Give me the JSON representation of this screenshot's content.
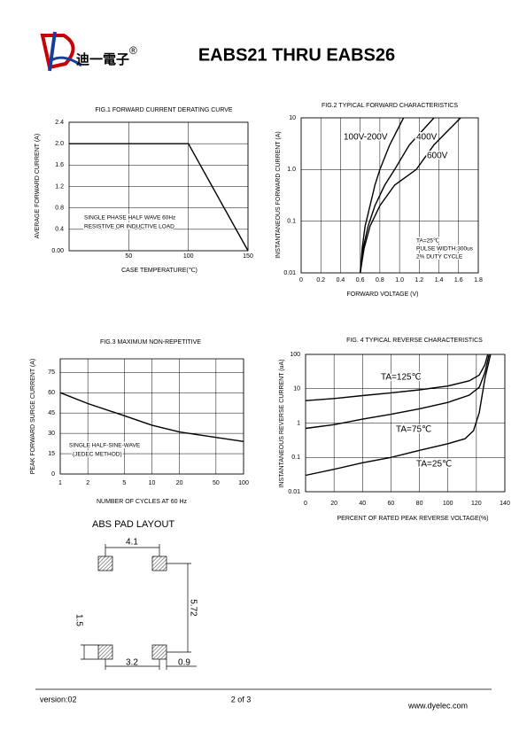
{
  "header": {
    "brand": "迪一電子",
    "registered": "®",
    "title": "EABS21 THRU EABS26"
  },
  "chart_data": [
    {
      "type": "line",
      "title": "FIG.1 FORWARD CURRENT DERATING CURVE",
      "x_label": "CASE TEMPERATURE(℃)",
      "y_label": "AVERAGE FORWARD CURRENT (A)",
      "xlim": [
        0,
        150
      ],
      "xticks": [
        50,
        100,
        150
      ],
      "ylim": [
        0,
        2.4
      ],
      "yticks": [
        {
          "value": 0,
          "label": "0.00"
        },
        0.4,
        0.8,
        1.2,
        1.6,
        {
          "value": 2,
          "label": "2.0"
        },
        2.4
      ],
      "grid": true,
      "annotations": [
        "SINGLE PHASE HALF WAVE  60Hz",
        "RESISTIVE OR INDUCTIVE LOAD"
      ],
      "series": [
        {
          "color": "#000000",
          "x": [
            0,
            100,
            150
          ],
          "values": [
            2,
            2,
            0
          ]
        }
      ]
    },
    {
      "type": "line",
      "title": "FIG.2 TYPICAL FORWARD CHARACTERISTICS",
      "x_label": "FORWARD VOLTAGE (V)",
      "y_label": "INSTANTANEOUS FORWARD CURRENT (A)",
      "xlim": [
        0,
        1.8
      ],
      "xticks": [
        0,
        0.2,
        0.4,
        0.6,
        0.8,
        {
          "value": 1,
          "label": "1.0"
        },
        1.2,
        1.4,
        1.6,
        1.8
      ],
      "ylim": [
        0.01,
        10
      ],
      "yticks": [
        0.01,
        0.1,
        {
          "value": 1,
          "label": "1.0"
        },
        10
      ],
      "y_log": true,
      "grid": true,
      "annotations": [
        "TA=25℃",
        "PULSE WIDTH:300us",
        "2% DUTY CYCLE"
      ],
      "series": [
        {
          "name": "100V-200V",
          "color": "#000000",
          "x": [
            0.6,
            0.62,
            0.65,
            0.7,
            0.75,
            0.8,
            0.9,
            1.04
          ],
          "values": [
            0.01,
            0.03,
            0.08,
            0.2,
            0.5,
            1,
            3,
            10
          ]
        },
        {
          "name": "400V",
          "color": "#000000",
          "x": [
            0.6,
            0.63,
            0.68,
            0.75,
            0.85,
            0.95,
            1.1,
            1.35
          ],
          "values": [
            0.01,
            0.03,
            0.08,
            0.2,
            0.5,
            1,
            3,
            10
          ]
        },
        {
          "name": "600V",
          "color": "#000000",
          "x": [
            0.6,
            0.64,
            0.7,
            0.8,
            0.95,
            1.17,
            1.35,
            1.62
          ],
          "values": [
            0.01,
            0.03,
            0.08,
            0.2,
            0.5,
            1,
            3,
            10
          ]
        }
      ]
    },
    {
      "type": "line",
      "title": "FIG.3 MAXIMUM NON-REPETITIVE",
      "x_label": "NUMBER OF CYCLES AT 60 Hz",
      "y_label": "PEAK FORWARD SURGE CURRENT (A)",
      "xlim": [
        1,
        100
      ],
      "xticks": [
        1,
        2,
        5,
        10,
        20,
        50,
        100
      ],
      "x_log": true,
      "ylim": [
        0,
        85
      ],
      "yticks": [
        0,
        15,
        30,
        45,
        60,
        75
      ],
      "grid": true,
      "annotations": [
        "SINGLE HALF-SINE-WAVE",
        "(JEDEC METHOD)"
      ],
      "series": [
        {
          "color": "#000000",
          "x": [
            1,
            2,
            5,
            10,
            20,
            50,
            100
          ],
          "values": [
            60,
            52,
            43,
            36,
            31,
            27,
            24
          ]
        }
      ]
    },
    {
      "type": "line",
      "title": "FIG. 4 TYPICAL REVERSE CHARACTERISTICS",
      "x_label": "PERCENT OF RATED PEAK REVERSE VOLTAGE(%)",
      "y_label": "INSTANTANEOUS REVERSE CURRENT (uA)",
      "xlim": [
        0,
        140
      ],
      "xticks": [
        0,
        20,
        40,
        60,
        80,
        100,
        120,
        140
      ],
      "ylim": [
        0.01,
        100
      ],
      "yticks": [
        0.01,
        0.1,
        1,
        10,
        100
      ],
      "y_log": true,
      "grid": true,
      "series": [
        {
          "name": "TA=125℃",
          "color": "#000000",
          "x": [
            0,
            20,
            40,
            60,
            80,
            100,
            115,
            122,
            126,
            128
          ],
          "values": [
            4.5,
            5.2,
            6.3,
            7.6,
            9.3,
            12,
            17,
            25,
            50,
            100
          ]
        },
        {
          "name": "TA=75℃",
          "color": "#000000",
          "x": [
            0,
            20,
            40,
            60,
            80,
            100,
            115,
            122,
            126,
            129
          ],
          "values": [
            0.7,
            0.9,
            1.3,
            1.8,
            2.6,
            4,
            6.5,
            11,
            30,
            100
          ]
        },
        {
          "name": "TA=25℃",
          "color": "#000000",
          "x": [
            0,
            20,
            40,
            60,
            80,
            100,
            112,
            118,
            122,
            126,
            130
          ],
          "values": [
            0.03,
            0.045,
            0.07,
            0.1,
            0.16,
            0.25,
            0.35,
            0.6,
            2,
            20,
            100
          ]
        }
      ]
    }
  ],
  "pad_layout": {
    "title": "ABS PAD LAYOUT",
    "dims": [
      "4.1",
      "5.72",
      "1.5",
      "3.2",
      "0.9"
    ]
  },
  "footer": {
    "version": "version:02",
    "page": "2 of 3",
    "website": "www.dyelec.com"
  }
}
